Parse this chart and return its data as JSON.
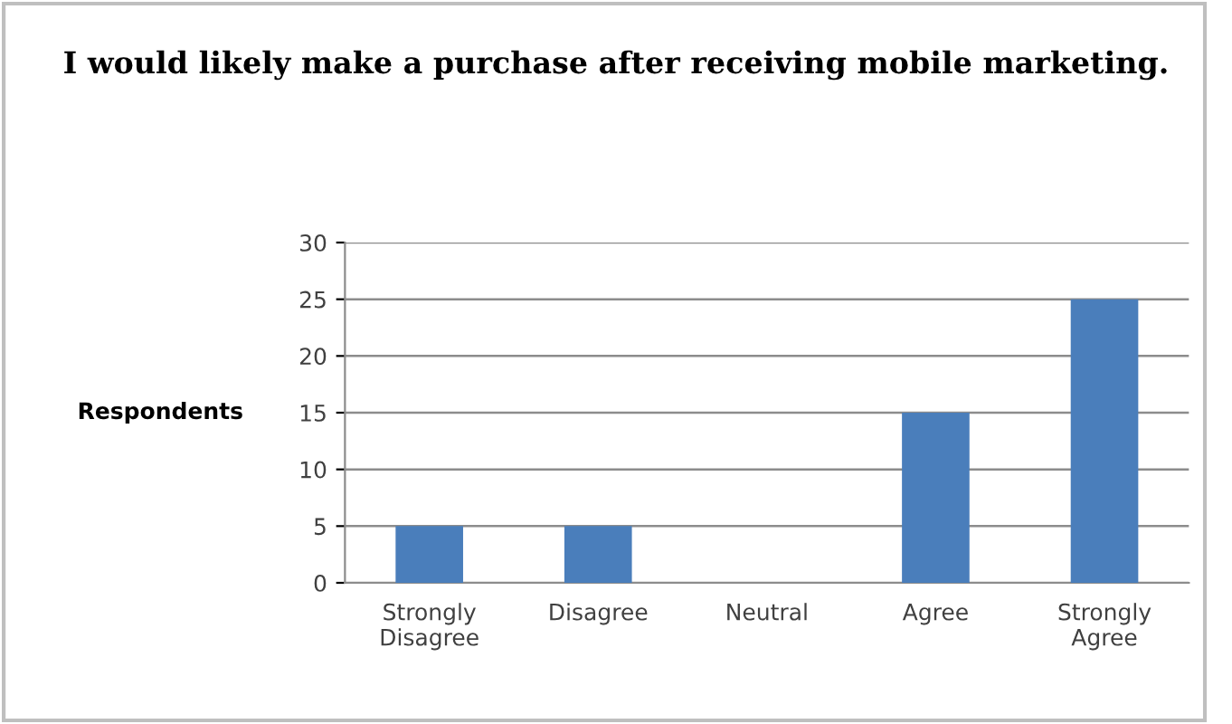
{
  "chart_data": {
    "type": "bar",
    "title": "I would likely make a purchase after receiving mobile marketing.",
    "ylabel": "Respondents",
    "categories": [
      "Strongly\nDisagree",
      "Disagree",
      "Neutral",
      "Agree",
      "Strongly\nAgree"
    ],
    "values": [
      5,
      5,
      0,
      15,
      25
    ],
    "color": "#4a7ebb",
    "ylim": [
      0,
      30
    ],
    "yticks": [
      0,
      5,
      10,
      15,
      20,
      25,
      30
    ],
    "grid": "y",
    "legend": false
  }
}
